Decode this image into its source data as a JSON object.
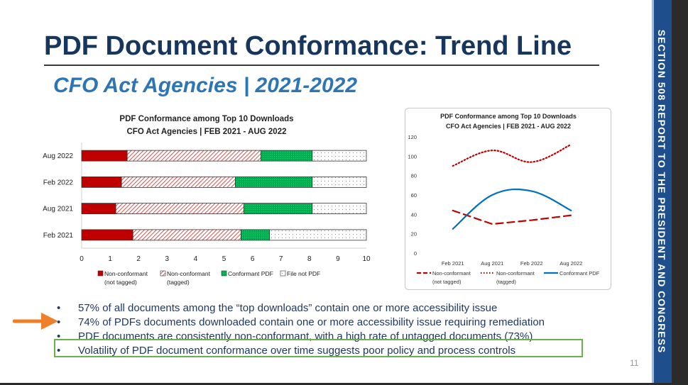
{
  "slide": {
    "title": "PDF Document Conformance: Trend Line",
    "subtitle": "CFO Act Agencies | 2021-2022",
    "sidebar_text": "SECTION 508 REPORT TO THE PRESIDENT AND CONGRESS",
    "page_number": "11",
    "accent_color": "#1f4e8c"
  },
  "bullets": [
    "57% of all documents among the “top downloads” contain one or more accessibility issue",
    "74% of PDFs documents downloaded contain one or more accessibility issue requiring remediation",
    "PDF documents are consistently non-conformant, with a high rate of untagged documents (73%)",
    "Volatility of PDF document conformance over time suggests poor policy and process controls"
  ],
  "bullet_glyph": "•",
  "arrow_icon": "orange-arrow-icon",
  "chart_data": [
    {
      "type": "bar",
      "stacked": true,
      "orientation": "horizontal",
      "title": "PDF Conformance among Top 10 Downloads",
      "subtitle": "CFO Act Agencies | FEB 2021 - AUG 2022",
      "categories": [
        "Aug 2022",
        "Feb 2022",
        "Aug 2021",
        "Feb 2021"
      ],
      "series": [
        {
          "name": "Non-conformant (not tagged)",
          "legend_lines": [
            "Non-conformant",
            "(not tagged)"
          ],
          "color": "#c00000",
          "values": [
            1.6,
            1.4,
            1.2,
            1.8
          ]
        },
        {
          "name": "Non-conformant (tagged)",
          "legend_lines": [
            "Non-conformant",
            "(tagged)"
          ],
          "color": "#e06666",
          "values": [
            4.7,
            4.0,
            4.5,
            3.8
          ]
        },
        {
          "name": "Conformant PDF",
          "legend_lines": [
            "Conformant PDF"
          ],
          "color": "#00b050",
          "values": [
            1.8,
            2.7,
            2.4,
            1.0
          ]
        },
        {
          "name": "File not PDF",
          "legend_lines": [
            "File not PDF"
          ],
          "color": "#ffffff",
          "values": [
            1.9,
            1.9,
            1.9,
            3.4
          ]
        }
      ],
      "xlim": [
        0,
        10
      ],
      "xticks": [
        "0",
        "1",
        "2",
        "3",
        "4",
        "5",
        "6",
        "7",
        "8",
        "9",
        "10"
      ]
    },
    {
      "type": "line",
      "title": "PDF Conformance among Top 10 Downloads",
      "subtitle": "CFO Act Agencies | FEB 2021 - AUG 2022",
      "x": [
        "Feb 2021",
        "Aug 2021",
        "Feb 2022",
        "Aug 2022"
      ],
      "ylim": [
        0,
        120
      ],
      "yticks": [
        "0",
        "20",
        "40",
        "60",
        "80",
        "100",
        "120"
      ],
      "series": [
        {
          "name": "Non-conformant (not tagged)",
          "legend_lines": [
            "Non-conformant",
            "(not tagged)"
          ],
          "color": "#c00000",
          "dash": "dashed",
          "values": [
            44,
            30,
            34,
            39
          ]
        },
        {
          "name": "Non-conformant (tagged)",
          "legend_lines": [
            "Non-conformant",
            "(tagged)"
          ],
          "color": "#c00000",
          "dash": "dotted",
          "values": [
            90,
            106,
            94,
            112
          ]
        },
        {
          "name": "Conformant PDF",
          "legend_lines": [
            "Conformant PDF"
          ],
          "color": "#0070c0",
          "dash": "solid",
          "values": [
            25,
            60,
            64,
            44
          ]
        }
      ]
    }
  ]
}
